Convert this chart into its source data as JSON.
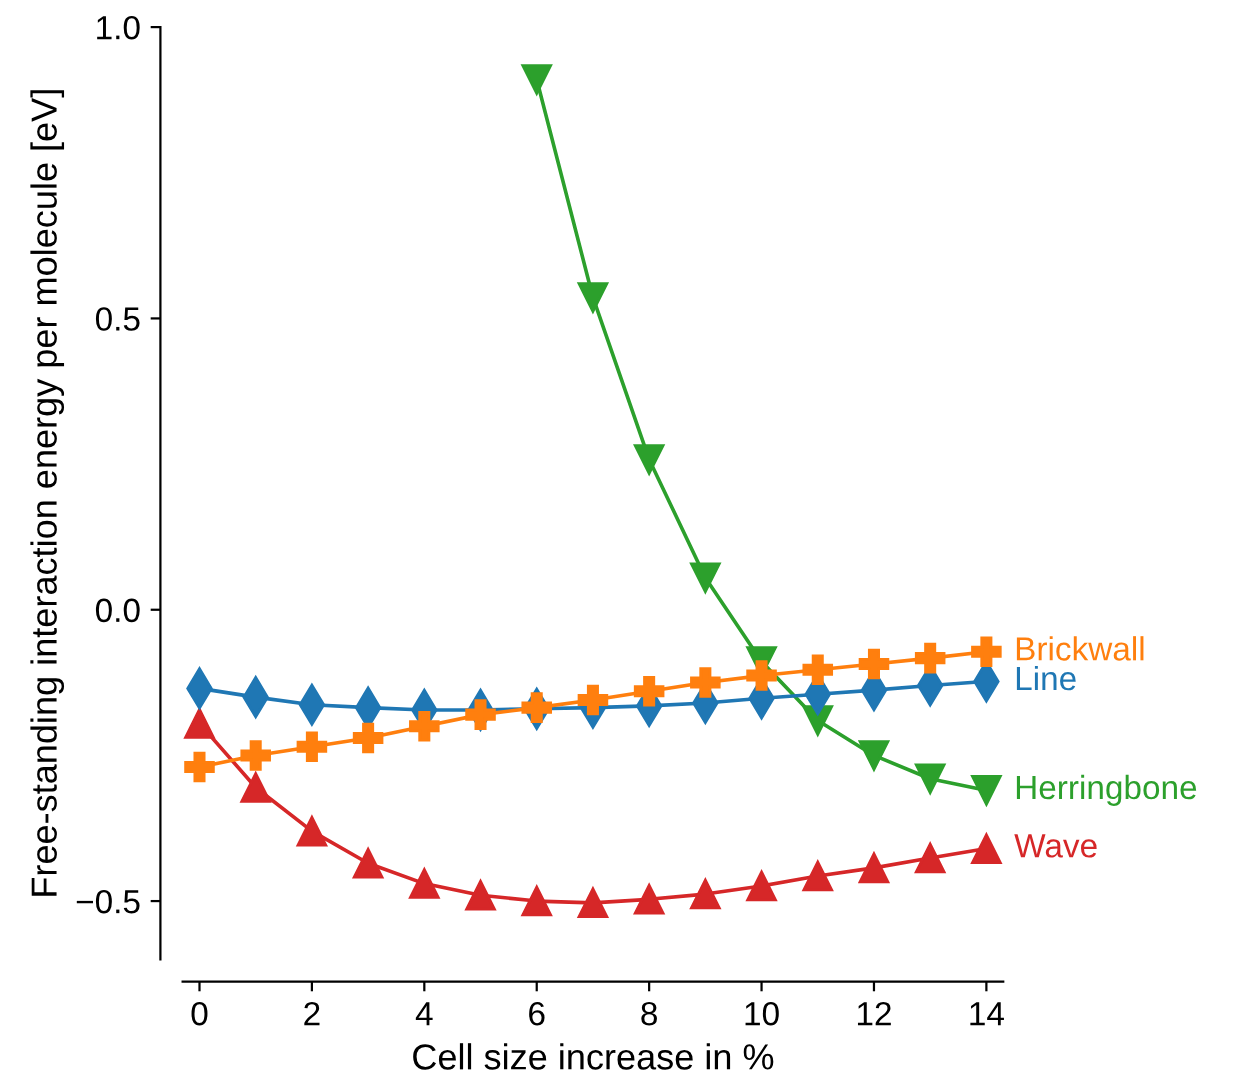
{
  "chart_data": {
    "type": "line",
    "xlabel": "Cell size increase in %",
    "ylabel": "Free-standing interaction energy per molecule [eV]",
    "x": [
      0,
      1,
      2,
      3,
      4,
      5,
      6,
      7,
      8,
      9,
      10,
      11,
      12,
      13,
      14
    ],
    "series": [
      {
        "name": "Brickwall",
        "color": "#ff7f0e",
        "marker": "cross",
        "values": [
          -0.27,
          -0.25,
          -0.235,
          -0.22,
          -0.2,
          -0.18,
          -0.168,
          -0.155,
          -0.14,
          -0.125,
          -0.113,
          -0.103,
          -0.093,
          -0.083,
          -0.072
        ]
      },
      {
        "name": "Line",
        "color": "#1f77b4",
        "marker": "diamond",
        "values": [
          -0.135,
          -0.15,
          -0.163,
          -0.168,
          -0.172,
          -0.172,
          -0.17,
          -0.168,
          -0.165,
          -0.16,
          -0.152,
          -0.145,
          -0.138,
          -0.13,
          -0.123
        ]
      },
      {
        "name": "Herringbone",
        "color": "#2ca02c",
        "marker": "triangle_down",
        "x": [
          6,
          7,
          8,
          9,
          10,
          11,
          12,
          13,
          14
        ],
        "values": [
          0.91,
          0.536,
          0.258,
          0.055,
          -0.089,
          -0.19,
          -0.25,
          -0.29,
          -0.31
        ]
      },
      {
        "name": "Wave",
        "color": "#d62728",
        "marker": "triangle",
        "values": [
          -0.195,
          -0.305,
          -0.38,
          -0.435,
          -0.47,
          -0.49,
          -0.5,
          -0.503,
          -0.497,
          -0.488,
          -0.474,
          -0.457,
          -0.443,
          -0.426,
          -0.41
        ]
      }
    ],
    "xlim": [
      -0.3,
      14.3
    ],
    "ylim": [
      -0.6,
      1.0
    ],
    "xticks": [
      0,
      2,
      4,
      6,
      8,
      10,
      12,
      14
    ],
    "yticks": [
      {
        "value": -0.5,
        "label": "−0.5"
      },
      {
        "value": 0.0,
        "label": "0.0"
      },
      {
        "value": 0.5,
        "label": "0.5"
      },
      {
        "value": 1.0,
        "label": "1.0"
      }
    ],
    "grid": false,
    "legend": false
  }
}
